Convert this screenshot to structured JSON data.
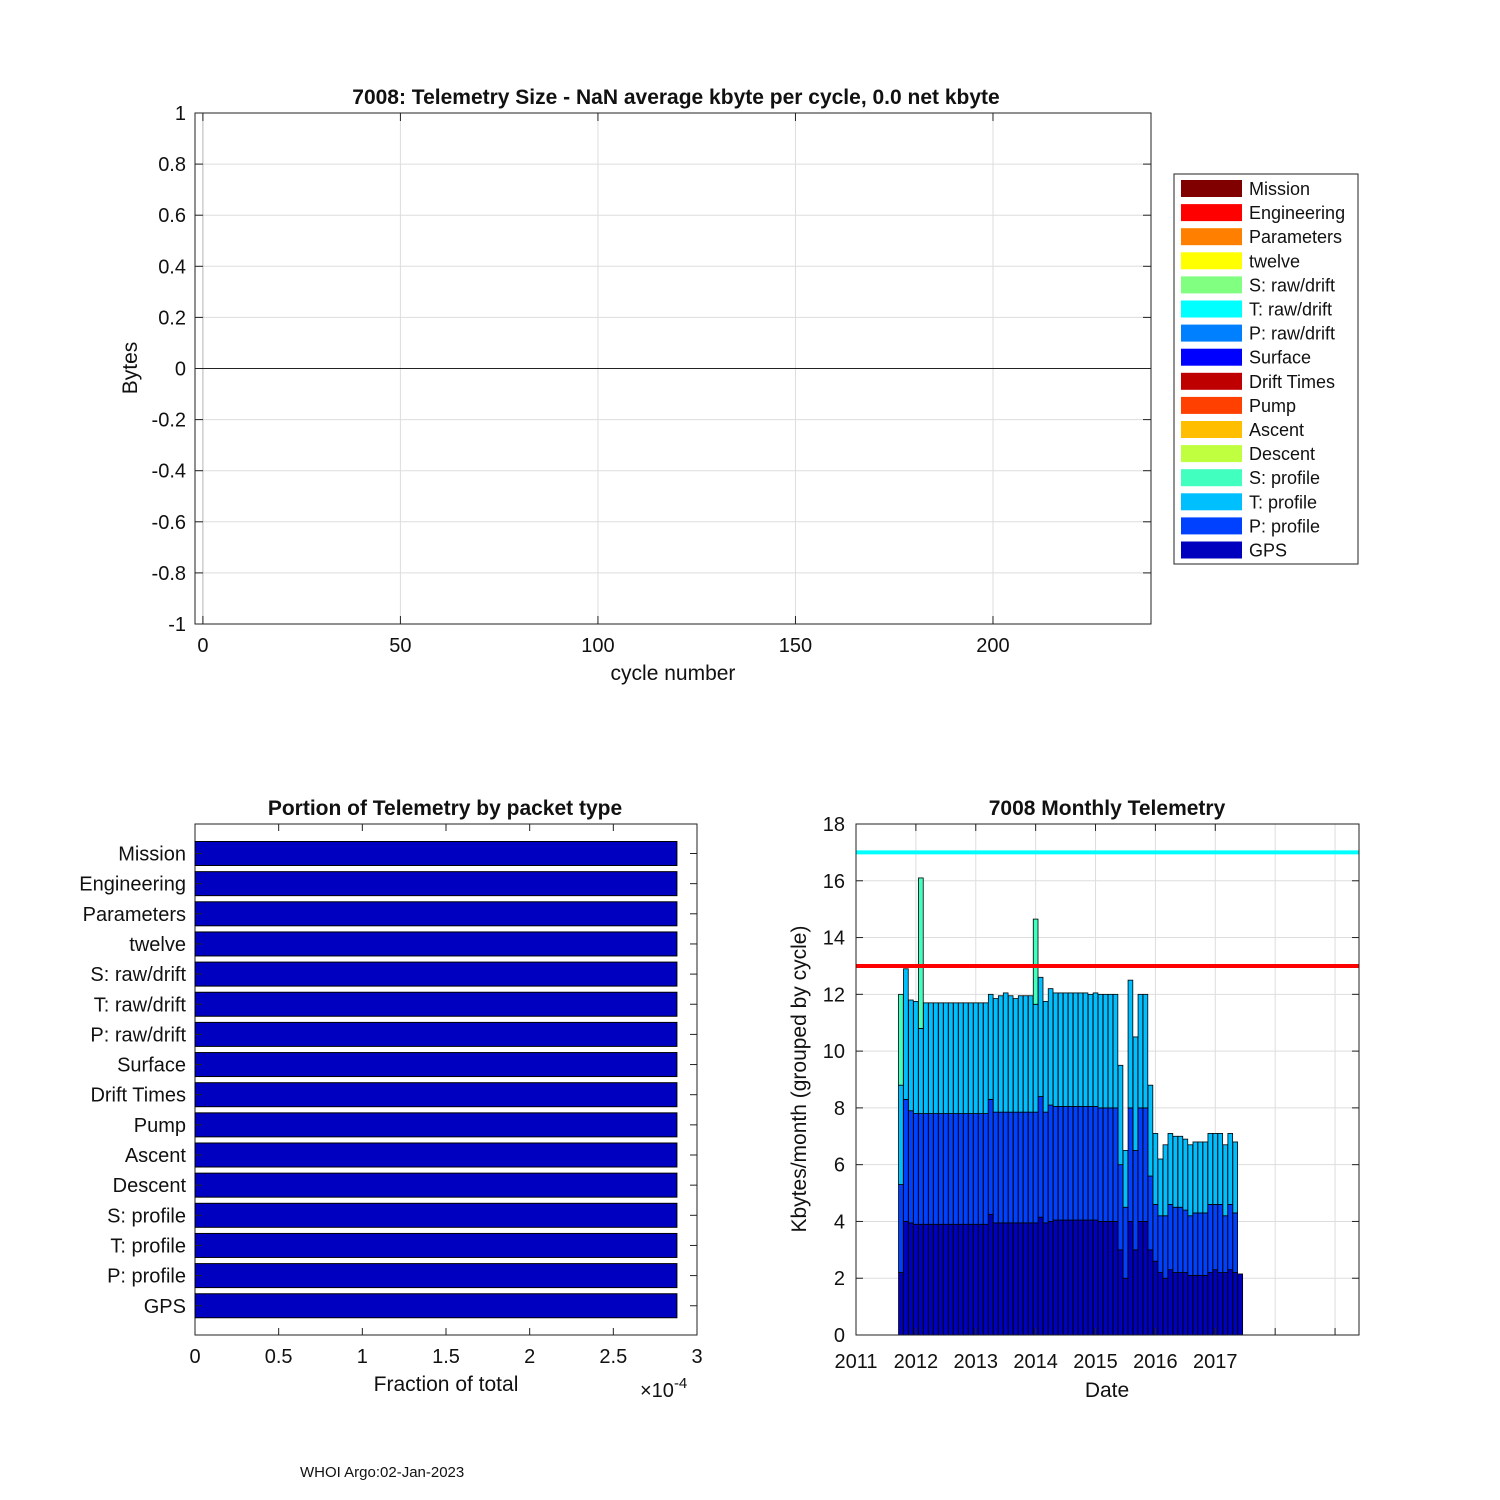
{
  "footer": "WHOI Argo:02-Jan-2023",
  "colors": {
    "legend": {
      "Mission": "#800000",
      "Engineering": "#ff0000",
      "Parameters": "#ff8000",
      "twelve": "#ffff00",
      "S: raw/drift": "#80ff80",
      "T: raw/drift": "#00ffff",
      "P: raw/drift": "#0080ff",
      "Surface": "#0000ff",
      "Drift Times": "#bf0000",
      "Pump": "#ff4000",
      "Ascent": "#ffbf00",
      "Descent": "#bfff40",
      "S: profile": "#40ffbf",
      "T: profile": "#00bfff",
      "P: profile": "#0040ff",
      "GPS": "#0000bf"
    },
    "hbar_fill": "#0000c0",
    "line_red": "#ff0000",
    "line_cyan": "#00ffff",
    "grid": "#dddddd"
  },
  "chart_data": [
    {
      "id": "top",
      "type": "area",
      "title": "7008: Telemetry Size -  NaN average kbyte per cycle,    0.0 net kbyte",
      "xlabel": "cycle number",
      "ylabel": "Bytes",
      "xlim": [
        -2,
        240
      ],
      "ylim": [
        -1,
        1
      ],
      "xticks": [
        0,
        50,
        100,
        150,
        200
      ],
      "yticks": [
        1,
        0.8,
        0.6,
        0.4,
        0.2,
        0,
        -0.2,
        -0.4,
        -0.6,
        -0.8,
        -1
      ],
      "ytick_labels": [
        "1",
        "0.8",
        "0.6",
        "0.4",
        "0.2",
        "0",
        "-0.2",
        "-0.4",
        "-0.6",
        "-0.8",
        "-1"
      ],
      "grid": true,
      "zero_line": 0,
      "legend_position": "right",
      "legend": [
        "Mission",
        "Engineering",
        "Parameters",
        "twelve",
        "S: raw/drift",
        "T: raw/drift",
        "P: raw/drift",
        "Surface",
        "Drift Times",
        "Pump",
        "Ascent",
        "Descent",
        "S: profile",
        "T: profile",
        "P: profile",
        "GPS"
      ]
    },
    {
      "id": "hbar",
      "type": "bar",
      "orientation": "horizontal",
      "title": "Portion of Telemetry by packet type",
      "xlabel": "Fraction of total",
      "x_exponent_label": "×10",
      "x_exponent_power": "-4",
      "xlim": [
        0,
        3
      ],
      "xticks": [
        0,
        0.5,
        1,
        1.5,
        2,
        2.5,
        3
      ],
      "xtick_labels": [
        "0",
        "0.5",
        "1",
        "1.5",
        "2",
        "2.5",
        "3"
      ],
      "categories": [
        "Mission",
        "Engineering",
        "Parameters",
        "twelve",
        "S: raw/drift",
        "T: raw/drift",
        "P: raw/drift",
        "Surface",
        "Drift Times",
        "Pump",
        "Ascent",
        "Descent",
        "S: profile",
        "T: profile",
        "P: profile",
        "GPS"
      ],
      "values": [
        2.88,
        2.88,
        2.88,
        2.88,
        2.88,
        2.88,
        2.88,
        2.88,
        2.88,
        2.88,
        2.88,
        2.88,
        2.88,
        2.88,
        2.88,
        2.88
      ]
    },
    {
      "id": "monthly",
      "type": "bar",
      "stacked": true,
      "title": "7008 Monthly Telemetry",
      "xlabel": "Date",
      "ylabel": "Kbytes/month (grouped by cycle)",
      "xlim": [
        2011,
        2019.4
      ],
      "ylim": [
        0,
        18
      ],
      "xticks": [
        2011,
        2012,
        2013,
        2014,
        2015,
        2016,
        2017
      ],
      "xtick_labels": [
        "2011",
        "2012",
        "2013",
        "2014",
        "2015",
        "2016",
        "2017"
      ],
      "yticks": [
        0,
        2,
        4,
        6,
        8,
        10,
        12,
        14,
        16,
        18
      ],
      "grid": true,
      "hlines": [
        {
          "y": 17,
          "color": "cyan"
        },
        {
          "y": 13,
          "color": "red"
        }
      ],
      "x": [
        2011.75,
        2011.833,
        2011.917,
        2012.0,
        2012.083,
        2012.167,
        2012.25,
        2012.333,
        2012.417,
        2012.5,
        2012.583,
        2012.667,
        2012.75,
        2012.833,
        2012.917,
        2013.0,
        2013.083,
        2013.167,
        2013.25,
        2013.333,
        2013.417,
        2013.5,
        2013.583,
        2013.667,
        2013.75,
        2013.833,
        2013.917,
        2014.0,
        2014.083,
        2014.167,
        2014.25,
        2014.333,
        2014.417,
        2014.5,
        2014.583,
        2014.667,
        2014.75,
        2014.833,
        2014.917,
        2015.0,
        2015.083,
        2015.167,
        2015.25,
        2015.333,
        2015.417,
        2015.5,
        2015.583,
        2015.667,
        2015.75,
        2015.833,
        2015.917,
        2016.0,
        2016.083,
        2016.167,
        2016.25,
        2016.333,
        2016.417,
        2016.5,
        2016.583,
        2016.667,
        2016.75,
        2016.833,
        2016.917,
        2017.0,
        2017.083,
        2017.167,
        2017.25,
        2017.333,
        2017.417
      ],
      "series": [
        {
          "name": "GPS",
          "color": "#0000bf",
          "values": [
            2.2,
            4.0,
            3.95,
            3.9,
            3.9,
            3.9,
            3.9,
            3.9,
            3.9,
            3.9,
            3.9,
            3.9,
            3.9,
            3.9,
            3.9,
            3.9,
            3.9,
            3.9,
            4.25,
            3.95,
            3.95,
            3.95,
            3.95,
            3.95,
            3.95,
            3.95,
            3.95,
            3.95,
            4.15,
            3.95,
            4.0,
            4.05,
            4.05,
            4.05,
            4.05,
            4.05,
            4.05,
            4.05,
            4.05,
            4.05,
            4.0,
            4.0,
            4.0,
            4.0,
            3.0,
            2.0,
            4.0,
            3.0,
            4.0,
            4.0,
            3.0,
            2.6,
            2.2,
            2.0,
            2.3,
            2.2,
            2.2,
            2.2,
            2.1,
            2.1,
            2.1,
            2.1,
            2.2,
            2.3,
            2.2,
            2.2,
            2.3,
            2.2,
            2.15
          ]
        },
        {
          "name": "P: profile",
          "color": "#0040ff",
          "values": [
            3.1,
            4.3,
            3.95,
            3.9,
            3.9,
            3.9,
            3.9,
            3.9,
            3.9,
            3.9,
            3.9,
            3.9,
            3.9,
            3.9,
            3.9,
            3.9,
            3.9,
            3.9,
            4.05,
            3.9,
            3.9,
            3.9,
            3.9,
            3.9,
            3.9,
            3.9,
            3.9,
            3.9,
            4.25,
            3.9,
            4.1,
            4.0,
            4.0,
            4.0,
            4.0,
            4.0,
            4.0,
            4.0,
            4.0,
            4.0,
            4.0,
            4.0,
            4.0,
            4.0,
            3.0,
            2.5,
            4.0,
            3.5,
            4.0,
            4.0,
            2.6,
            2.0,
            2.0,
            2.2,
            2.3,
            2.3,
            2.3,
            2.2,
            2.1,
            2.2,
            2.2,
            2.2,
            2.4,
            2.3,
            2.4,
            2.0,
            2.3,
            2.1,
            0
          ]
        },
        {
          "name": "T: profile",
          "color": "#00bfff",
          "values": [
            3.5,
            4.6,
            3.9,
            3.95,
            3.0,
            3.9,
            3.9,
            3.9,
            3.9,
            3.9,
            3.9,
            3.9,
            3.9,
            3.9,
            3.9,
            3.9,
            3.9,
            3.9,
            3.7,
            4.0,
            4.1,
            4.2,
            4.1,
            4.0,
            4.1,
            4.1,
            4.1,
            3.8,
            4.2,
            3.9,
            4.1,
            4.0,
            4.0,
            4.0,
            4.0,
            4.0,
            4.0,
            4.0,
            3.95,
            4.0,
            4.0,
            4.0,
            4.0,
            4.0,
            3.5,
            2.0,
            4.5,
            4.0,
            4.0,
            4.0,
            3.2,
            2.5,
            2.0,
            2.5,
            2.5,
            2.5,
            2.5,
            2.5,
            2.5,
            2.5,
            2.5,
            2.5,
            2.5,
            2.5,
            2.5,
            2.5,
            2.5,
            2.5,
            0
          ]
        },
        {
          "name": "S: profile",
          "color": "#40ffbf",
          "values": [
            3.2,
            0,
            0,
            0,
            5.3,
            0,
            0,
            0,
            0,
            0,
            0,
            0,
            0,
            0,
            0,
            0,
            0,
            0,
            0,
            0,
            0,
            0,
            0,
            0,
            0,
            0,
            0,
            3.0,
            0,
            0,
            0,
            0,
            0,
            0,
            0,
            0,
            0,
            0,
            0,
            0,
            0,
            0,
            0,
            0,
            0,
            0,
            0,
            0,
            0,
            0,
            0,
            0,
            0,
            0,
            0,
            0,
            0,
            0,
            0,
            0,
            0,
            0,
            0,
            0,
            0,
            0,
            0,
            0,
            0
          ]
        },
        {
          "name": "Descent",
          "color": "#bfff40",
          "values": [
            0,
            0,
            0,
            0,
            0,
            0,
            0,
            0,
            0,
            0,
            0,
            0,
            0,
            0,
            0,
            0,
            0,
            0,
            0,
            0,
            0,
            0,
            0,
            0,
            0,
            0,
            0,
            0,
            0,
            0,
            0,
            0,
            0,
            0,
            0,
            0,
            0,
            0,
            0,
            0,
            0,
            0,
            0,
            0,
            0,
            0,
            0,
            0,
            0,
            0,
            0,
            0,
            0,
            0,
            0,
            0,
            0,
            0,
            0,
            0,
            0,
            0,
            0,
            0,
            0,
            0,
            0,
            0,
            0
          ]
        }
      ]
    }
  ]
}
